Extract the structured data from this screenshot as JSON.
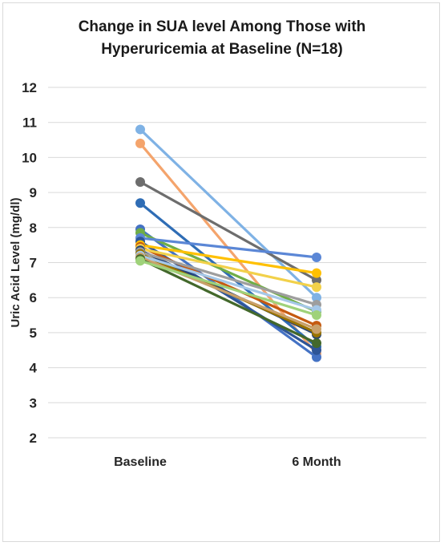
{
  "chart_data": {
    "type": "line",
    "title": "Change in SUA level Among Those with\nHyperuricemia at Baseline (N=18)",
    "ylabel": "Uric Acid Level (mg/dl)",
    "xlabel": "",
    "categories": [
      "Baseline",
      "6 Month"
    ],
    "ylim": [
      2,
      12
    ],
    "yticks": [
      2,
      3,
      4,
      5,
      6,
      7,
      8,
      9,
      10,
      11,
      12
    ],
    "grid": true,
    "legend": "none",
    "series": [
      {
        "values": [
          10.8,
          6.0
        ],
        "color": "#7fb2e5"
      },
      {
        "values": [
          10.4,
          4.4
        ],
        "color": "#f4a46c"
      },
      {
        "values": [
          9.3,
          6.5
        ],
        "color": "#6d6d6d"
      },
      {
        "values": [
          8.7,
          4.6
        ],
        "color": "#2f6db5"
      },
      {
        "values": [
          7.95,
          4.3
        ],
        "color": "#4472c4"
      },
      {
        "values": [
          7.85,
          5.6
        ],
        "color": "#70ad47"
      },
      {
        "values": [
          7.7,
          7.15
        ],
        "color": "#5b87d6"
      },
      {
        "values": [
          7.6,
          4.5
        ],
        "color": "#2e5597"
      },
      {
        "values": [
          7.5,
          6.7
        ],
        "color": "#ffc000"
      },
      {
        "values": [
          7.45,
          5.2
        ],
        "color": "#c55a11"
      },
      {
        "values": [
          7.4,
          6.3
        ],
        "color": "#f2d14a"
      },
      {
        "values": [
          7.35,
          4.95
        ],
        "color": "#264478"
      },
      {
        "values": [
          7.3,
          5.8
        ],
        "color": "#9e9e9e"
      },
      {
        "values": [
          7.25,
          5.0
        ],
        "color": "#997300"
      },
      {
        "values": [
          7.2,
          5.65
        ],
        "color": "#a5c8e8"
      },
      {
        "values": [
          7.15,
          5.1
        ],
        "color": "#c9a06a"
      },
      {
        "values": [
          7.1,
          4.7
        ],
        "color": "#43682b"
      },
      {
        "values": [
          7.05,
          5.5
        ],
        "color": "#9fd27a"
      }
    ]
  }
}
